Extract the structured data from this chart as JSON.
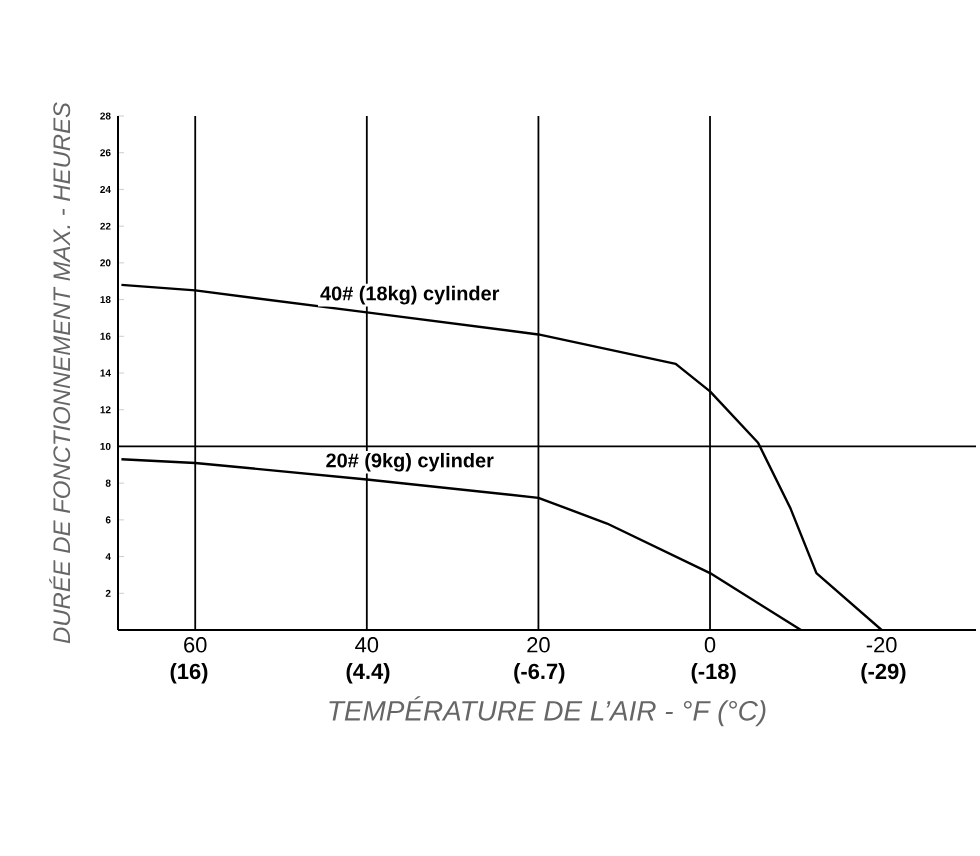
{
  "chart_data": {
    "type": "line",
    "xlabel": "TEMPÉRATURE DE L’AIR - °F (°C)",
    "ylabel": "DURÉE DE FONCTIONNEMENT MAX. - HEURES",
    "series": [
      {
        "name": "40# (18kg) cylinder",
        "color": "#000000",
        "x": [
          68.6,
          60,
          40,
          20,
          4,
          0,
          -5.6,
          -9.4,
          -12.4,
          -20
        ],
        "values": [
          18.8,
          18.5,
          17.3,
          16.1,
          14.5,
          13.0,
          10.2,
          6.6,
          3.1,
          0
        ]
      },
      {
        "name": "20# (9kg) cylinder",
        "color": "#000000",
        "x": [
          68.6,
          60,
          40,
          20,
          12,
          0,
          -10.6
        ],
        "values": [
          9.3,
          9.1,
          8.2,
          7.2,
          5.8,
          3.1,
          0
        ]
      }
    ],
    "xlim": [
      69,
      -31
    ],
    "ylim": [
      0,
      28
    ],
    "xticks": [
      60,
      40,
      20,
      0,
      -20
    ],
    "x2lim": [
      20.6,
      -35
    ],
    "x2ticks": [
      {
        "value": 16,
        "label": "(16)"
      },
      {
        "value": 4.4,
        "label": "(4.4)"
      },
      {
        "value": -6.7,
        "label": "(-6.7)"
      },
      {
        "value": -18,
        "label": "(-18)"
      },
      {
        "value": -29,
        "label": "(-29)"
      }
    ],
    "yticks": [
      2,
      4,
      6,
      8,
      10,
      12,
      14,
      16,
      18,
      20,
      22,
      24,
      26,
      28
    ],
    "ref_lines": [
      {
        "axis": "x",
        "value": 60
      },
      {
        "axis": "x",
        "value": 40
      },
      {
        "axis": "x",
        "value": 20
      },
      {
        "axis": "x",
        "value": 0
      },
      {
        "axis": "y",
        "value": 10
      }
    ],
    "marker": "none",
    "line_style": "solid"
  }
}
